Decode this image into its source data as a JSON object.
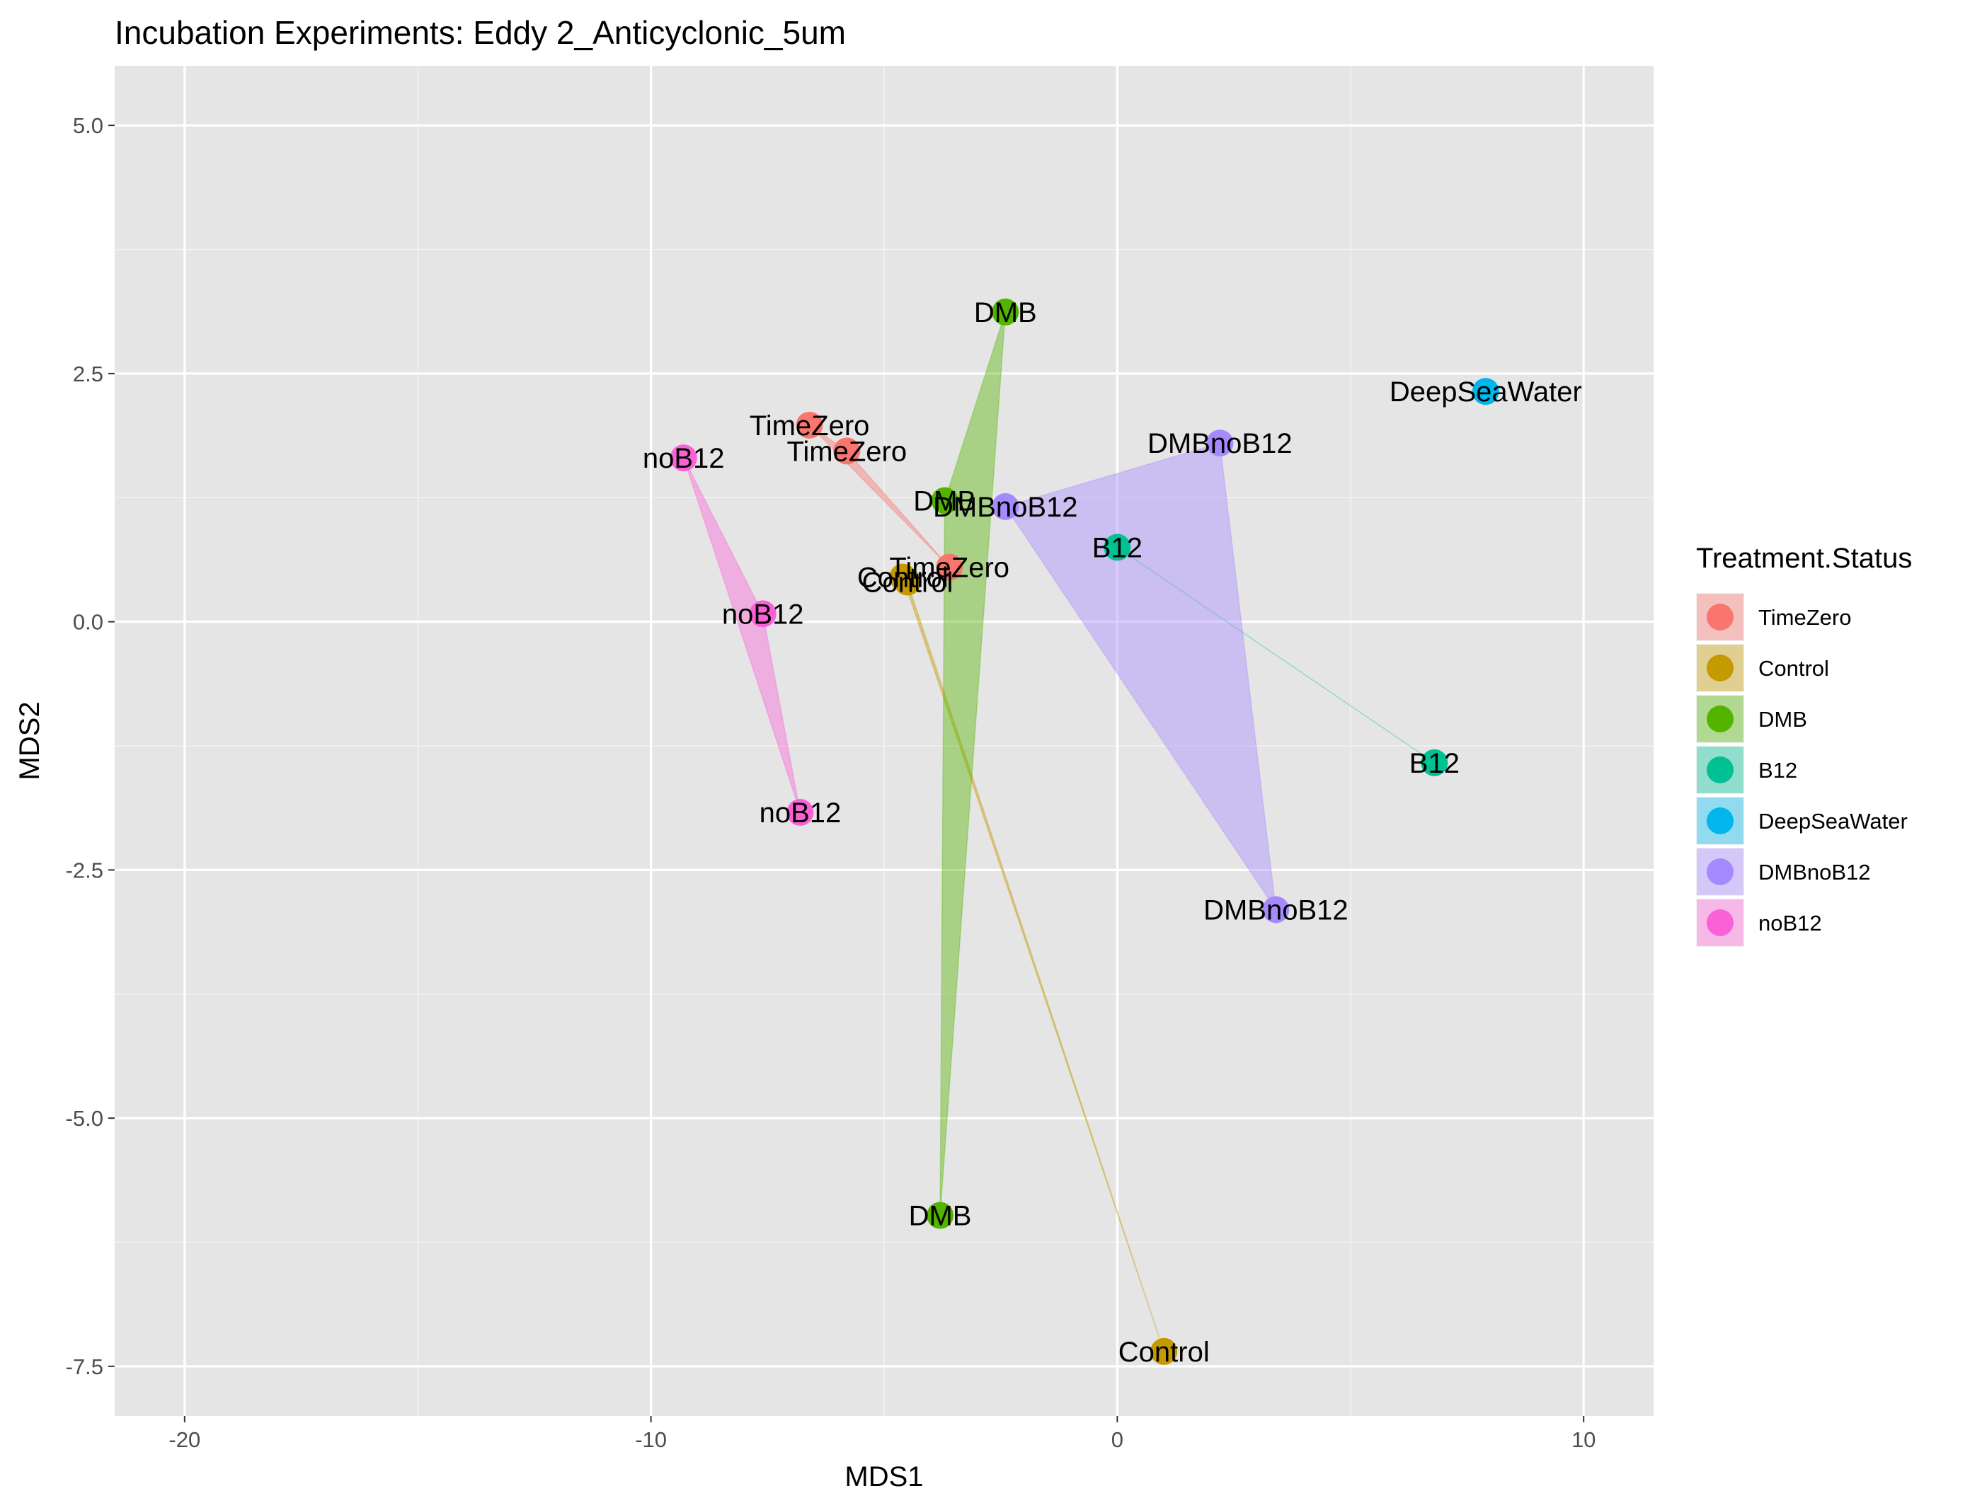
{
  "chart_data": {
    "type": "scatter",
    "title": "Incubation Experiments: Eddy 2_Anticyclonic_5um",
    "xlabel": "MDS1",
    "ylabel": "MDS2",
    "xlim": [
      -21.5,
      11.5
    ],
    "ylim": [
      -8.0,
      5.6
    ],
    "x_ticks": [
      -20,
      -10,
      0,
      10
    ],
    "x_tick_labels": [
      "-20",
      "-10",
      "0",
      "10"
    ],
    "y_ticks": [
      -7.5,
      -5.0,
      -2.5,
      0.0,
      2.5,
      5.0
    ],
    "y_tick_labels": [
      "-7.5",
      "-5.0",
      "-2.5",
      "0.0",
      "2.5",
      "5.0"
    ],
    "grid": true,
    "legend": {
      "title": "Treatment.Status",
      "position": "right"
    },
    "series": [
      {
        "name": "TimeZero",
        "color": "#F8766D",
        "points": [
          {
            "x": -6.6,
            "y": 1.98,
            "label": "TimeZero"
          },
          {
            "x": -5.8,
            "y": 1.72,
            "label": "TimeZero"
          },
          {
            "x": -3.6,
            "y": 0.55,
            "label": "TimeZero"
          }
        ]
      },
      {
        "name": "Control",
        "color": "#C49A00",
        "points": [
          {
            "x": -4.6,
            "y": 0.45,
            "label": "Control"
          },
          {
            "x": -4.5,
            "y": 0.4,
            "label": "Control"
          },
          {
            "x": 1.0,
            "y": -7.35,
            "label": "Control"
          }
        ]
      },
      {
        "name": "DMB",
        "color": "#53B400",
        "points": [
          {
            "x": -2.4,
            "y": 3.12,
            "label": "DMB"
          },
          {
            "x": -3.7,
            "y": 1.22,
            "label": "DMB"
          },
          {
            "x": -3.8,
            "y": -5.98,
            "label": "DMB"
          }
        ]
      },
      {
        "name": "B12",
        "color": "#00C094",
        "points": [
          {
            "x": 0.0,
            "y": 0.75,
            "label": "B12"
          },
          {
            "x": 6.8,
            "y": -1.42,
            "label": "B12"
          }
        ]
      },
      {
        "name": "DeepSeaWater",
        "color": "#00B6EB",
        "points": [
          {
            "x": 7.9,
            "y": 2.32,
            "label": "DeepSeaWater"
          }
        ]
      },
      {
        "name": "DMBnoB12",
        "color": "#A58AFF",
        "points": [
          {
            "x": 2.2,
            "y": 1.8,
            "label": "DMBnoB12"
          },
          {
            "x": -2.4,
            "y": 1.16,
            "label": "DMBnoB12"
          },
          {
            "x": 3.4,
            "y": -2.9,
            "label": "DMBnoB12"
          }
        ]
      },
      {
        "name": "noB12",
        "color": "#FB61D7",
        "points": [
          {
            "x": -9.3,
            "y": 1.65,
            "label": "noB12"
          },
          {
            "x": -7.6,
            "y": 0.08,
            "label": "noB12"
          },
          {
            "x": -6.8,
            "y": -1.92,
            "label": "noB12"
          }
        ]
      }
    ]
  }
}
